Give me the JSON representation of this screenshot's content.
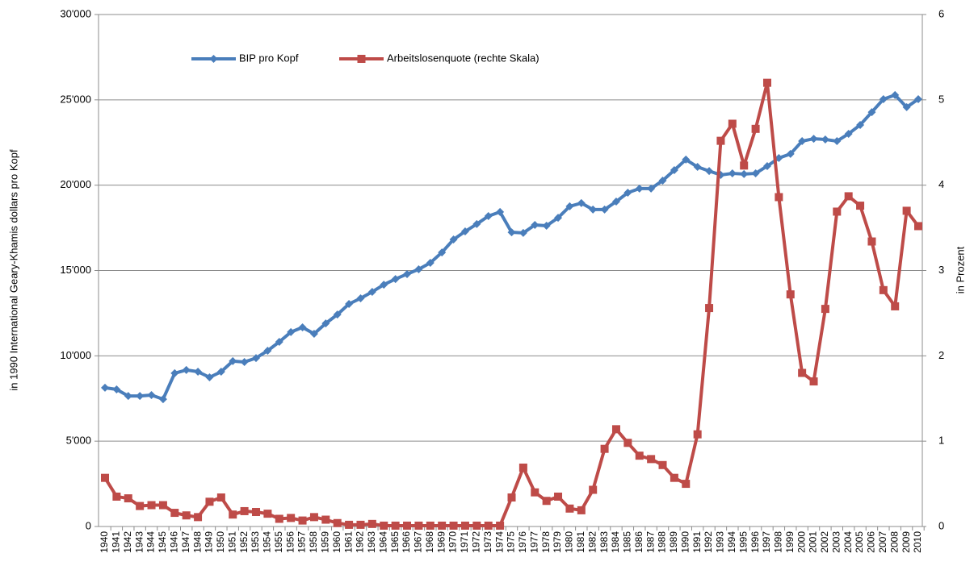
{
  "chart_data": {
    "type": "line",
    "y_label": "in  1990 International Geary-Khamis dollars pro Kopf",
    "y2_label": "in Prozent",
    "categories": [
      "1940",
      "1941",
      "1942",
      "1943",
      "1944",
      "1945",
      "1946",
      "1947",
      "1948",
      "1949",
      "1950",
      "1951",
      "1952",
      "1953",
      "1954",
      "1955",
      "1956",
      "1957",
      "1958",
      "1959",
      "1960",
      "1961",
      "1962",
      "1963",
      "1964",
      "1965",
      "1966",
      "1967",
      "1968",
      "1969",
      "1970",
      "1971",
      "1972",
      "1973",
      "1974",
      "1975",
      "1976",
      "1977",
      "1978",
      "1979",
      "1980",
      "1981",
      "1982",
      "1983",
      "1984",
      "1985",
      "1986",
      "1987",
      "1988",
      "1989",
      "1990",
      "1991",
      "1992",
      "1993",
      "1994",
      "1995",
      "1996",
      "1997",
      "1998",
      "1999",
      "2000",
      "2001",
      "2002",
      "2003",
      "2004",
      "2005",
      "2006",
      "2007",
      "2008",
      "2009",
      "2010"
    ],
    "series": [
      {
        "name": "BIP pro Kopf",
        "color": "#4a7ebb",
        "marker": "diamond",
        "axis": "y",
        "values": [
          8130,
          8030,
          7650,
          7650,
          7700,
          7460,
          8980,
          9170,
          9070,
          8740,
          9070,
          9690,
          9640,
          9870,
          10300,
          10820,
          11390,
          11670,
          11290,
          11900,
          12420,
          13040,
          13370,
          13750,
          14170,
          14500,
          14790,
          15070,
          15450,
          16060,
          16820,
          17290,
          17720,
          18190,
          18430,
          17240,
          17200,
          17670,
          17620,
          18090,
          18760,
          18950,
          18570,
          18570,
          19040,
          19560,
          19800,
          19800,
          20270,
          20880,
          21500,
          21070,
          20830,
          20600,
          20690,
          20650,
          20690,
          21120,
          21590,
          21830,
          22580,
          22720,
          22680,
          22580,
          23010,
          23530,
          24280,
          25040,
          25280,
          24570,
          25040
        ]
      },
      {
        "name": "Arbeitslosenquote (rechte Skala)",
        "color": "#be4b48",
        "marker": "square",
        "axis": "y2",
        "values": [
          0.57,
          0.35,
          0.33,
          0.24,
          0.25,
          0.25,
          0.16,
          0.13,
          0.11,
          0.29,
          0.34,
          0.14,
          0.18,
          0.17,
          0.15,
          0.09,
          0.1,
          0.07,
          0.11,
          0.08,
          0.04,
          0.02,
          0.02,
          0.03,
          0.01,
          0.01,
          0.01,
          0.01,
          0.01,
          0.01,
          0.01,
          0.01,
          0.01,
          0.01,
          0.01,
          0.34,
          0.69,
          0.4,
          0.3,
          0.35,
          0.21,
          0.19,
          0.43,
          0.91,
          1.14,
          0.98,
          0.83,
          0.79,
          0.72,
          0.57,
          0.5,
          1.08,
          2.56,
          4.52,
          4.72,
          4.23,
          4.66,
          5.2,
          3.86,
          2.72,
          1.8,
          1.7,
          2.55,
          3.69,
          3.87,
          3.76,
          3.34,
          2.77,
          2.58,
          3.7,
          3.52
        ]
      }
    ],
    "ylim": [
      0,
      30000
    ],
    "yticks": [
      0,
      {
        "value": 5000,
        "label": "5'000"
      },
      {
        "value": 10000,
        "label": "10'000"
      },
      {
        "value": 15000,
        "label": "15'000"
      },
      {
        "value": 20000,
        "label": "20'000"
      },
      {
        "value": 25000,
        "label": "25'000"
      },
      {
        "value": 30000,
        "label": "30'000"
      }
    ],
    "y2lim": [
      0,
      6
    ],
    "y2ticks": [
      0,
      1,
      2,
      3,
      4,
      5,
      6
    ],
    "grid": true,
    "legend": "top"
  }
}
